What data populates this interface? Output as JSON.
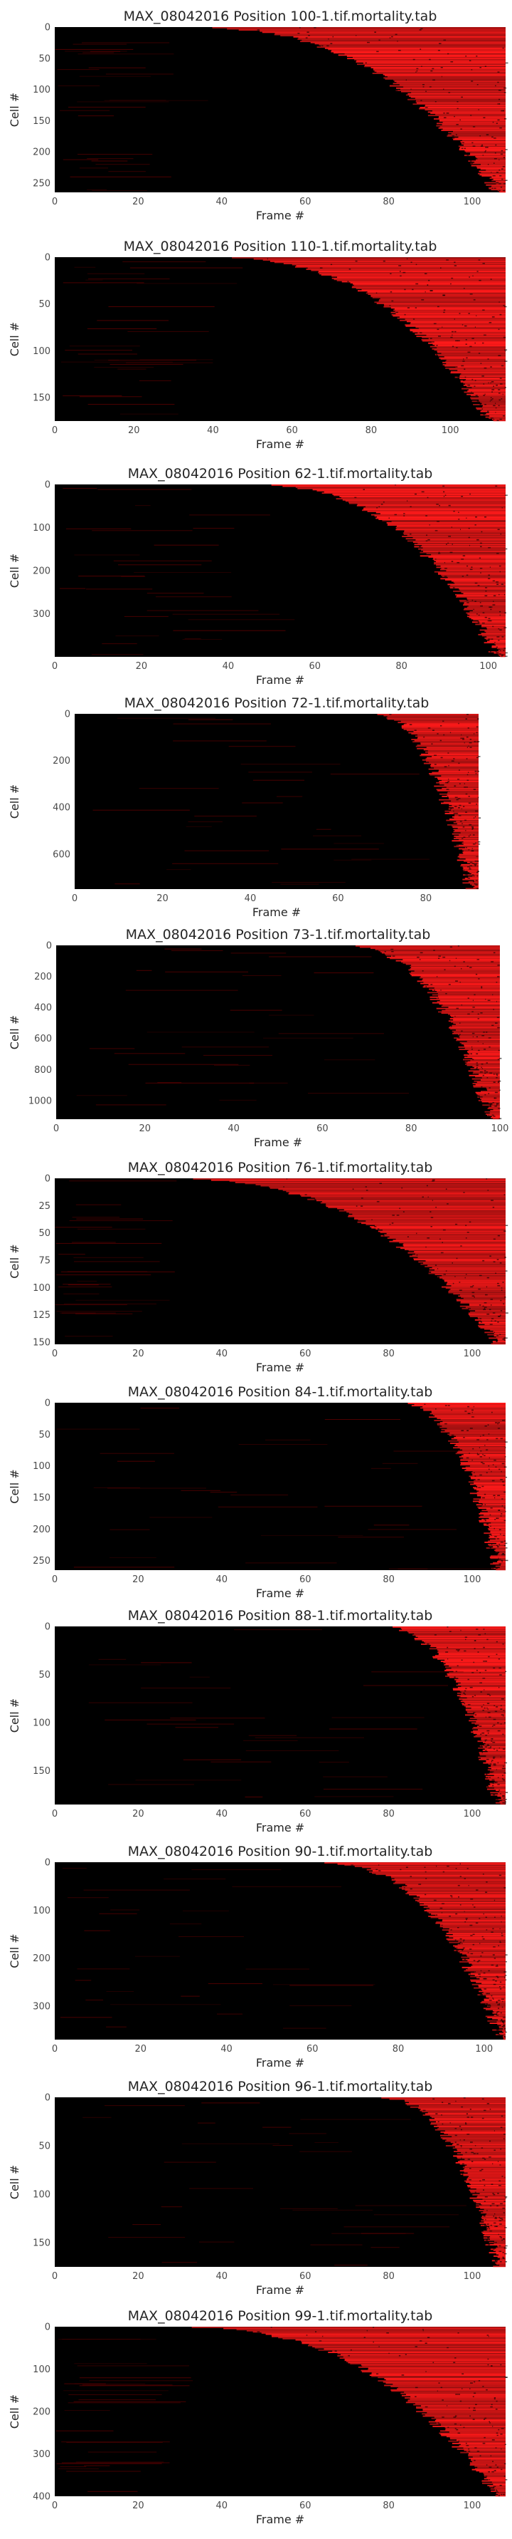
{
  "chart_data": [
    {
      "type": "heatmap",
      "title": "MAX_08042016 Position 100-1.tif.mortality.tab",
      "xlabel": "Frame #",
      "ylabel": "Cell #",
      "xlim": [
        0,
        108
      ],
      "ylim": [
        0,
        265
      ],
      "xticks": [
        0,
        20,
        40,
        60,
        80,
        100
      ],
      "yticks": [
        0,
        50,
        100,
        150,
        200,
        250
      ],
      "colors": {
        "low": "#000000",
        "high": "#ff1a1a"
      },
      "death_onset_frame": {
        "early": 12,
        "late": 106
      }
    },
    {
      "type": "heatmap",
      "title": "MAX_08042016 Position 110-1.tif.mortality.tab",
      "xlabel": "Frame #",
      "ylabel": "Cell #",
      "xlim": [
        0,
        114
      ],
      "ylim": [
        0,
        175
      ],
      "xticks": [
        0,
        20,
        40,
        60,
        80,
        100
      ],
      "yticks": [
        0,
        50,
        100,
        150
      ],
      "colors": {
        "low": "#000000",
        "high": "#ff1a1a"
      },
      "death_onset_frame": {
        "early": 20,
        "late": 110
      }
    },
    {
      "type": "heatmap",
      "title": "MAX_08042016 Position 62-1.tif.mortality.tab",
      "xlabel": "Frame #",
      "ylabel": "Cell #",
      "xlim": [
        0,
        104
      ],
      "ylim": [
        0,
        400
      ],
      "xticks": [
        0,
        20,
        40,
        60,
        80,
        100
      ],
      "yticks": [
        0,
        100,
        200,
        300
      ],
      "colors": {
        "low": "#000000",
        "high": "#ff1a1a"
      },
      "death_onset_frame": {
        "early": 30,
        "late": 102
      }
    },
    {
      "type": "heatmap",
      "title": "MAX_08042016 Position 72-1.tif.mortality.tab",
      "xlabel": "Frame #",
      "ylabel": "Cell #",
      "xlim": [
        0,
        92
      ],
      "ylim": [
        0,
        750
      ],
      "xticks": [
        0,
        20,
        40,
        60,
        80
      ],
      "yticks": [
        0,
        200,
        400,
        600
      ],
      "colors": {
        "low": "#000000",
        "high": "#ff1a1a"
      },
      "death_onset_frame": {
        "early": 60,
        "late": 90
      }
    },
    {
      "type": "heatmap",
      "title": "MAX_08042016 Position 73-1.tif.mortality.tab",
      "xlabel": "Frame #",
      "ylabel": "Cell #",
      "xlim": [
        0,
        100
      ],
      "ylim": [
        0,
        1120
      ],
      "xticks": [
        0,
        20,
        40,
        60,
        80,
        100
      ],
      "yticks": [
        0,
        200,
        400,
        600,
        800,
        1000
      ],
      "colors": {
        "low": "#000000",
        "high": "#ff1a1a"
      },
      "death_onset_frame": {
        "early": 55,
        "late": 98
      }
    },
    {
      "type": "heatmap",
      "title": "MAX_08042016 Position 76-1.tif.mortality.tab",
      "xlabel": "Frame #",
      "ylabel": "Cell #",
      "xlim": [
        0,
        108
      ],
      "ylim": [
        0,
        152
      ],
      "xticks": [
        0,
        20,
        40,
        60,
        80,
        100
      ],
      "yticks": [
        0,
        25,
        50,
        75,
        100,
        125,
        150
      ],
      "colors": {
        "low": "#000000",
        "high": "#ff1a1a"
      },
      "death_onset_frame": {
        "early": 5,
        "late": 106
      }
    },
    {
      "type": "heatmap",
      "title": "MAX_08042016 Position 84-1.tif.mortality.tab",
      "xlabel": "Frame #",
      "ylabel": "Cell #",
      "xlim": [
        0,
        108
      ],
      "ylim": [
        0,
        265
      ],
      "xticks": [
        0,
        20,
        40,
        60,
        80,
        100
      ],
      "yticks": [
        0,
        50,
        100,
        150,
        200,
        250
      ],
      "colors": {
        "low": "#000000",
        "high": "#ff1a1a"
      },
      "death_onset_frame": {
        "early": 75,
        "late": 106
      }
    },
    {
      "type": "heatmap",
      "title": "MAX_08042016 Position 88-1.tif.mortality.tab",
      "xlabel": "Frame #",
      "ylabel": "Cell #",
      "xlim": [
        0,
        108
      ],
      "ylim": [
        0,
        185
      ],
      "xticks": [
        0,
        20,
        40,
        60,
        80,
        100
      ],
      "yticks": [
        0,
        50,
        100,
        150
      ],
      "colors": {
        "low": "#000000",
        "high": "#ff1a1a"
      },
      "death_onset_frame": {
        "early": 70,
        "late": 106
      }
    },
    {
      "type": "heatmap",
      "title": "MAX_08042016 Position 90-1.tif.mortality.tab",
      "xlabel": "Frame #",
      "ylabel": "Cell #",
      "xlim": [
        0,
        105
      ],
      "ylim": [
        0,
        370
      ],
      "xticks": [
        0,
        20,
        40,
        60,
        80,
        100
      ],
      "yticks": [
        0,
        100,
        200,
        300
      ],
      "colors": {
        "low": "#000000",
        "high": "#ff1a1a"
      },
      "death_onset_frame": {
        "early": 50,
        "late": 104
      }
    },
    {
      "type": "heatmap",
      "title": "MAX_08042016 Position 96-1.tif.mortality.tab",
      "xlabel": "Frame #",
      "ylabel": "Cell #",
      "xlim": [
        0,
        108
      ],
      "ylim": [
        0,
        175
      ],
      "xticks": [
        0,
        20,
        40,
        60,
        80,
        100
      ],
      "yticks": [
        0,
        50,
        100,
        150
      ],
      "colors": {
        "low": "#000000",
        "high": "#ff1a1a"
      },
      "death_onset_frame": {
        "early": 70,
        "late": 106
      }
    },
    {
      "type": "heatmap",
      "title": "MAX_08042016 Position 99-1.tif.mortality.tab",
      "xlabel": "Frame #",
      "ylabel": "Cell #",
      "xlim": [
        0,
        108
      ],
      "ylim": [
        0,
        400
      ],
      "xticks": [
        0,
        20,
        40,
        60,
        80,
        100
      ],
      "yticks": [
        0,
        100,
        200,
        300,
        400
      ],
      "colors": {
        "low": "#000000",
        "high": "#ff1a1a"
      },
      "death_onset_frame": {
        "early": 8,
        "late": 106
      }
    }
  ]
}
